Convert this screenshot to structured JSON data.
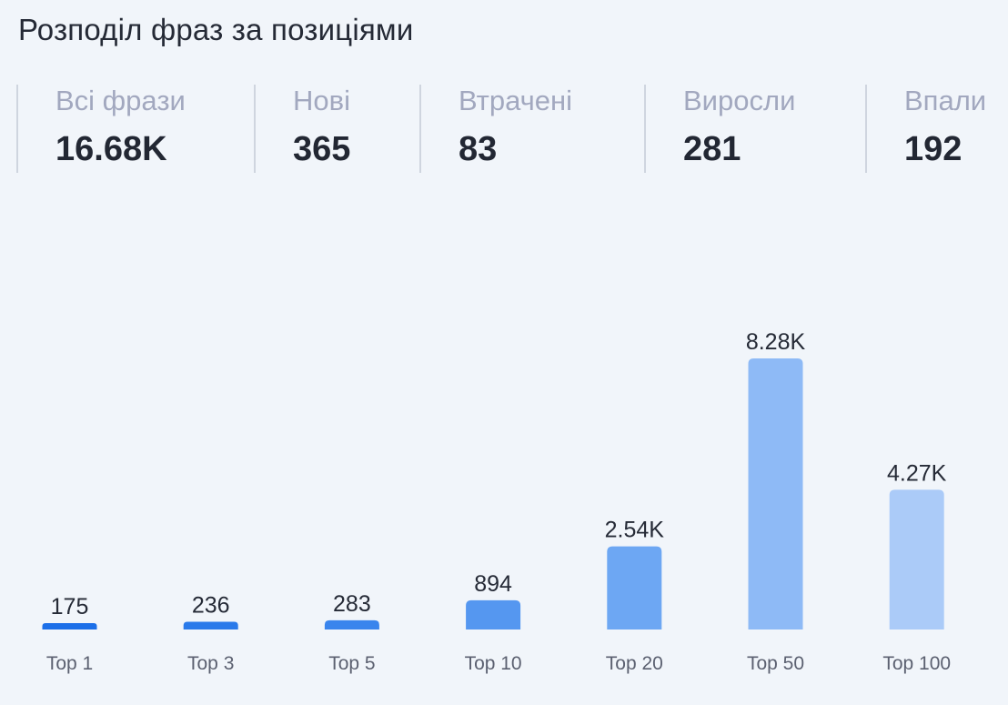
{
  "title": "Розподіл фраз за позиціями",
  "stats": [
    {
      "label": "Всі фрази",
      "value": "16.68K"
    },
    {
      "label": "Нові",
      "value": "365"
    },
    {
      "label": "Втрачені",
      "value": "83"
    },
    {
      "label": "Виросли",
      "value": "281"
    },
    {
      "label": "Впали",
      "value": "192"
    }
  ],
  "colors": {
    "bars": [
      "#1c6fe8",
      "#2a7aea",
      "#3a85ed",
      "#5597f0",
      "#6da7f3",
      "#8ebaf6",
      "#abcbf8"
    ],
    "background": "#f1f5fa"
  },
  "chart_data": {
    "type": "bar",
    "categories": [
      "Top 1",
      "Top 3",
      "Top 5",
      "Top 10",
      "Top 20",
      "Top 50",
      "Top 100"
    ],
    "values": [
      175,
      236,
      283,
      894,
      2540,
      8280,
      4270
    ],
    "data_labels": [
      "175",
      "236",
      "283",
      "894",
      "2.54K",
      "8.28K",
      "4.27K"
    ],
    "xlabel": "",
    "ylabel": "",
    "grid": false,
    "legend": "none"
  }
}
